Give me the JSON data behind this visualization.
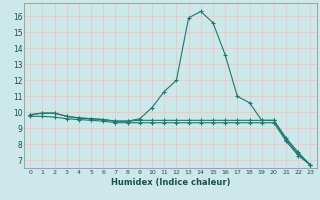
{
  "title": "",
  "xlabel": "Humidex (Indice chaleur)",
  "ylabel": "",
  "bg_color": "#cce8e8",
  "grid_color": "#b8d8d8",
  "line_color": "#1a7a6e",
  "xlim": [
    -0.5,
    23.5
  ],
  "ylim": [
    6.5,
    16.8
  ],
  "xticks": [
    0,
    1,
    2,
    3,
    4,
    5,
    6,
    7,
    8,
    9,
    10,
    11,
    12,
    13,
    14,
    15,
    16,
    17,
    18,
    19,
    20,
    21,
    22,
    23
  ],
  "yticks": [
    7,
    8,
    9,
    10,
    11,
    12,
    13,
    14,
    15,
    16
  ],
  "series1": [
    9.85,
    9.95,
    9.95,
    9.75,
    9.65,
    9.6,
    9.55,
    9.45,
    9.45,
    9.6,
    10.3,
    11.3,
    12.0,
    15.9,
    16.3,
    15.6,
    13.6,
    11.0,
    10.6,
    9.5,
    9.5,
    8.3,
    7.4,
    6.7
  ],
  "series2": [
    9.85,
    9.95,
    9.95,
    9.75,
    9.65,
    9.6,
    9.55,
    9.45,
    9.45,
    9.5,
    9.5,
    9.5,
    9.5,
    9.5,
    9.5,
    9.5,
    9.5,
    9.5,
    9.5,
    9.5,
    9.5,
    8.4,
    7.5,
    6.7
  ],
  "series3": [
    9.75,
    9.75,
    9.7,
    9.6,
    9.55,
    9.5,
    9.45,
    9.35,
    9.35,
    9.35,
    9.35,
    9.35,
    9.35,
    9.35,
    9.35,
    9.35,
    9.35,
    9.35,
    9.35,
    9.35,
    9.35,
    8.2,
    7.3,
    6.7
  ]
}
